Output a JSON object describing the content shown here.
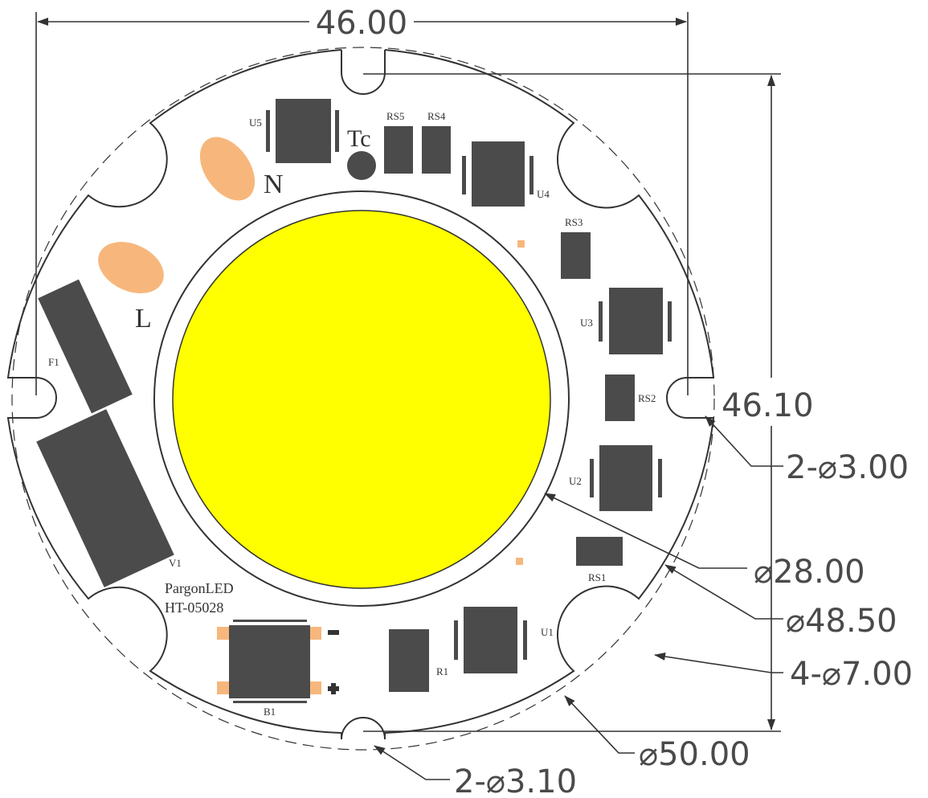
{
  "dimensions": {
    "width": "46.00",
    "height": "46.10",
    "hole_small_b": "2-⌀3.00",
    "hole_small_a": "2-⌀3.10",
    "led_diameter": "⌀28.00",
    "inner_diameter": "⌀48.50",
    "slot_holes": "4-⌀7.00",
    "outer_diameter": "⌀50.00"
  },
  "terminals": {
    "neutral": "N",
    "live": "L",
    "tc": "Tc"
  },
  "components": {
    "u1": "U1",
    "u2": "U2",
    "u3": "U3",
    "u4": "U4",
    "u5": "U5",
    "rs1": "RS1",
    "rs2": "RS2",
    "rs3": "RS3",
    "rs4": "RS4",
    "rs5": "RS5",
    "r1": "R1",
    "f1": "F1",
    "v1": "V1",
    "b1": "B1"
  },
  "marking": {
    "brand": "PargonLED",
    "model": "HT-05028"
  },
  "polarity": {
    "minus": "−",
    "plus": "+"
  },
  "colors": {
    "led": "#ffff00",
    "pad": "#f7b77c",
    "component": "#4b4b4b",
    "outline": "#333333"
  }
}
